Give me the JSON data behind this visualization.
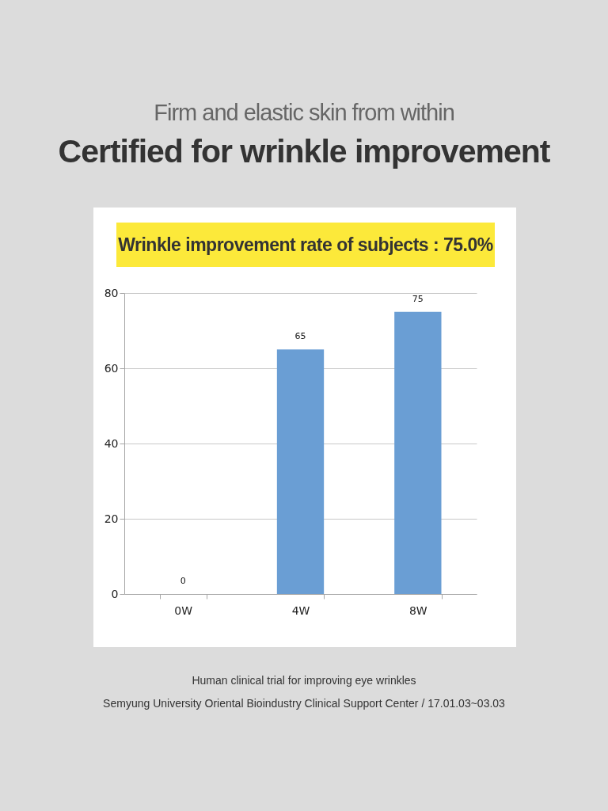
{
  "chart_data": {
    "type": "bar",
    "subtitle": "Firm and elastic skin from within",
    "title": "Certified for wrinkle improvement",
    "annotations": [
      "Wrinkle improvement rate of subjects : 75.0%",
      "Human clinical trial for improving eye wrinkles",
      "Semyung University Oriental Bioindustry Clinical Support Center / 17.01.03~03.03"
    ],
    "categories": [
      "0W",
      "4W",
      "8W"
    ],
    "values": [
      0,
      65,
      75
    ],
    "color": "#6a9ed4",
    "ylim": [
      0,
      80
    ],
    "yticks": [
      0,
      20,
      40,
      60,
      80
    ],
    "grid": "y",
    "data_labels": true
  }
}
